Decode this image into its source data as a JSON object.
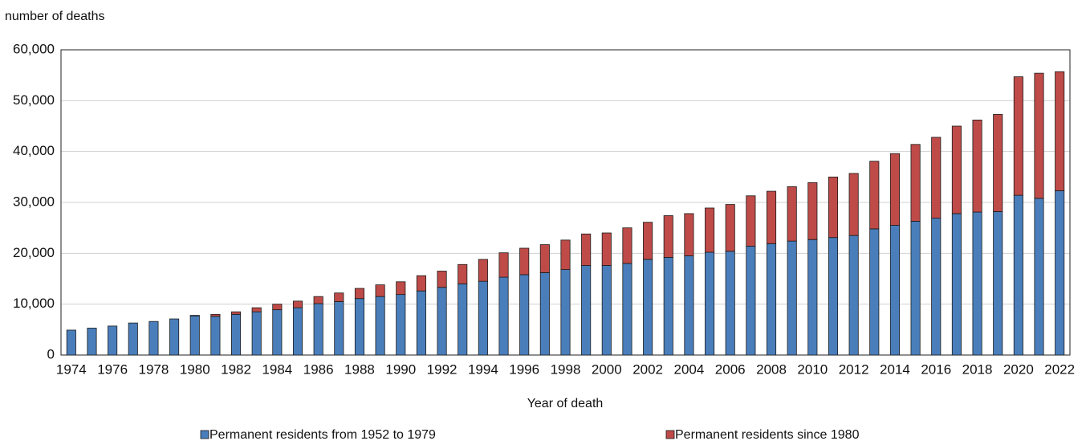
{
  "chart_data": {
    "type": "stacked-bar",
    "y_label": "number of deaths",
    "x_label": "Year of death",
    "categories": [
      "1974",
      null,
      "1976",
      null,
      "1978",
      null,
      "1980",
      null,
      "1982",
      null,
      "1984",
      null,
      "1986",
      null,
      "1988",
      null,
      "1990",
      null,
      "1992",
      null,
      "1994",
      null,
      "1996",
      null,
      "1998",
      null,
      "2000",
      null,
      "2002",
      null,
      "2004",
      null,
      "2006",
      null,
      "2008",
      null,
      "2010",
      null,
      "2012",
      null,
      "2014",
      null,
      "2016",
      null,
      "2018",
      null,
      "2020",
      null,
      "2022"
    ],
    "series": [
      {
        "name": "Permanent residents from 1952 to 1979",
        "color": "#4a7ebb",
        "values": [
          4900,
          5300,
          5700,
          6300,
          6600,
          7100,
          7700,
          7600,
          8000,
          8500,
          8900,
          9300,
          10100,
          10500,
          11100,
          11500,
          11900,
          12600,
          13300,
          14000,
          14500,
          15300,
          15800,
          16200,
          16800,
          17600,
          17600,
          18000,
          18800,
          19200,
          19500,
          20200,
          20400,
          21400,
          21900,
          22400,
          22700,
          23100,
          23500,
          24800,
          25500,
          26300,
          26900,
          27800,
          28100,
          28200,
          31400,
          30800,
          32300
        ]
      },
      {
        "name": "Permanent residents since 1980",
        "color": "#be4b48",
        "values": [
          0,
          0,
          0,
          0,
          0,
          0,
          100,
          400,
          500,
          800,
          1100,
          1300,
          1400,
          1700,
          2000,
          2300,
          2500,
          3000,
          3200,
          3800,
          4300,
          4800,
          5200,
          5500,
          5800,
          6200,
          6400,
          7000,
          7300,
          8200,
          8300,
          8700,
          9200,
          9900,
          10300,
          10700,
          11200,
          11900,
          12200,
          13300,
          14100,
          15100,
          15900,
          17200,
          18100,
          19100,
          23300,
          24600,
          23400
        ]
      }
    ],
    "ylim": [
      0,
      60000
    ],
    "yticks": [
      0,
      {
        "value": 10000,
        "label": "10,000"
      },
      {
        "value": 20000,
        "label": "20,000"
      },
      {
        "value": 30000,
        "label": "30,000"
      },
      {
        "value": 40000,
        "label": "40,000"
      },
      {
        "value": 50000,
        "label": "50,000"
      },
      {
        "value": 60000,
        "label": "60,000"
      }
    ],
    "grid": true,
    "legend": "bottom"
  }
}
